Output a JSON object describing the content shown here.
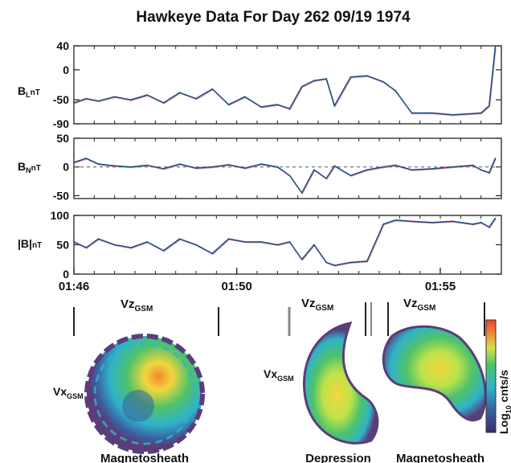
{
  "chart_data": [
    {
      "type": "line",
      "title": "Hawkeye Data For Day 262 09/19 1974",
      "ylabel": "B",
      "ylabel_sub": "L",
      "ylabel_unit": "nT",
      "ylim": [
        -90,
        40
      ],
      "yticks": [
        "40",
        "0",
        "-50",
        "-90"
      ],
      "ytick_values": [
        40,
        0,
        -50,
        -90
      ],
      "xlim": [
        0,
        10.5
      ],
      "x": [
        0,
        0.3,
        0.6,
        1.0,
        1.4,
        1.8,
        2.2,
        2.6,
        3.0,
        3.4,
        3.8,
        4.2,
        4.6,
        5.0,
        5.3,
        5.6,
        5.9,
        6.2,
        6.4,
        6.8,
        7.2,
        7.6,
        7.9,
        8.3,
        8.8,
        9.3,
        9.8,
        10.0,
        10.2,
        10.35
      ],
      "series": [
        {
          "values": [
            -55,
            -48,
            -52,
            -45,
            -50,
            -42,
            -55,
            -38,
            -48,
            -32,
            -58,
            -45,
            -62,
            -58,
            -65,
            -28,
            -18,
            -15,
            -60,
            -12,
            -10,
            -20,
            -35,
            -72,
            -72,
            -75,
            -73,
            -72,
            -60,
            38
          ]
        }
      ]
    },
    {
      "type": "line",
      "ylabel": "B",
      "ylabel_sub": "N",
      "ylabel_unit": "nT",
      "ylim": [
        -55,
        50
      ],
      "yticks": [
        "50",
        "0",
        "-50"
      ],
      "ytick_values": [
        50,
        0,
        -50
      ],
      "xlim": [
        0,
        10.5
      ],
      "x": [
        0,
        0.3,
        0.6,
        1.0,
        1.4,
        1.8,
        2.2,
        2.6,
        3.0,
        3.4,
        3.8,
        4.2,
        4.6,
        5.0,
        5.3,
        5.6,
        5.9,
        6.2,
        6.4,
        6.8,
        7.2,
        7.6,
        7.9,
        8.3,
        8.8,
        9.3,
        9.8,
        10.0,
        10.2,
        10.35
      ],
      "series": [
        {
          "values": [
            8,
            15,
            5,
            2,
            0,
            3,
            -3,
            5,
            -2,
            0,
            4,
            -2,
            5,
            0,
            -15,
            -45,
            -5,
            -20,
            2,
            -15,
            -5,
            0,
            3,
            -5,
            -3,
            0,
            3,
            -5,
            -10,
            15
          ]
        }
      ]
    },
    {
      "type": "line",
      "ylabel": "|B|",
      "ylabel_unit": "nT",
      "ylim": [
        0,
        100
      ],
      "yticks": [
        "100",
        "50",
        "0"
      ],
      "ytick_values": [
        100,
        50,
        0
      ],
      "xlim": [
        0,
        10.5
      ],
      "xticks": [
        "01:46",
        "01:50",
        "01:55"
      ],
      "xtick_values": [
        0,
        4,
        9
      ],
      "x": [
        0,
        0.3,
        0.6,
        1.0,
        1.4,
        1.8,
        2.2,
        2.6,
        3.0,
        3.4,
        3.8,
        4.2,
        4.6,
        5.0,
        5.3,
        5.6,
        5.9,
        6.2,
        6.4,
        6.8,
        7.2,
        7.6,
        7.9,
        8.3,
        8.8,
        9.3,
        9.8,
        10.0,
        10.2,
        10.35
      ],
      "series": [
        {
          "values": [
            55,
            45,
            60,
            50,
            45,
            55,
            40,
            60,
            50,
            35,
            60,
            55,
            55,
            50,
            55,
            25,
            50,
            20,
            15,
            20,
            22,
            85,
            92,
            90,
            88,
            90,
            85,
            88,
            80,
            95
          ]
        }
      ]
    }
  ],
  "distributions": [
    {
      "axis_top": "Vz",
      "axis_top_sub": "GSM",
      "axis_left": "Vx",
      "axis_left_sub": "GSM",
      "caption": "Magnetosheath"
    },
    {
      "axis_top": "Vz",
      "axis_top_sub": "GSM",
      "axis_left": "Vx",
      "axis_left_sub": "GSM",
      "caption": "Depression"
    },
    {
      "axis_top": "Vz",
      "axis_top_sub": "GSM",
      "caption": "Magnetosheath"
    }
  ],
  "colorbar": {
    "label": "Log",
    "label_sub": "10",
    "label_rest": " cnts/s"
  },
  "colors": {
    "trace": "#1f4e8c",
    "trace_shadow": "#e07070",
    "frame": "#222222",
    "palette": [
      "#5a3d7a",
      "#3a5fa0",
      "#2fb3c9",
      "#4fc26a",
      "#bde34a",
      "#f2d73c",
      "#f08a35",
      "#e8442a"
    ]
  }
}
